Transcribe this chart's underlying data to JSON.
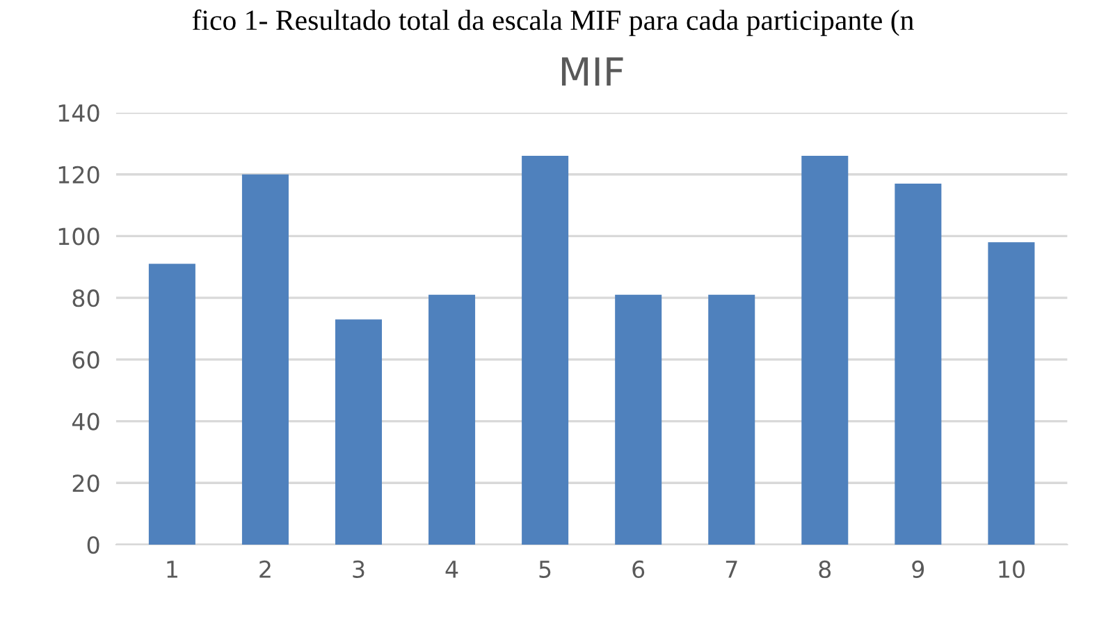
{
  "chart_data": {
    "type": "bar",
    "title": "MIF",
    "annotations": [
      "fico 1- Resultado total da escala MIF para cada participante (n"
    ],
    "categories": [
      "1",
      "2",
      "3",
      "4",
      "5",
      "6",
      "7",
      "8",
      "9",
      "10"
    ],
    "values": [
      91,
      120,
      73,
      81,
      126,
      81,
      81,
      126,
      117,
      98
    ],
    "color": "#4f81bd",
    "ylim": [
      0,
      140
    ],
    "yticks": [
      0,
      20,
      40,
      60,
      80,
      100,
      120,
      140
    ],
    "grid": "y",
    "legend": false
  }
}
